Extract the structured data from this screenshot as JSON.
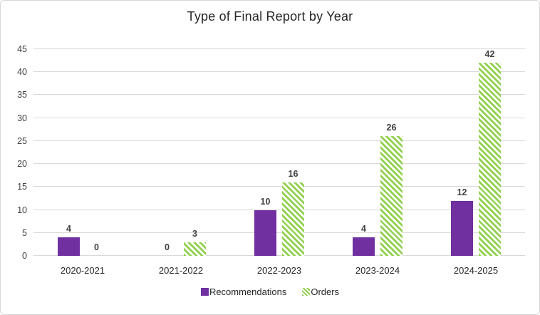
{
  "chart_data": {
    "type": "bar",
    "title": "Type of Final Report by Year",
    "categories": [
      "2020-2021",
      "2021-2022",
      "2022-2023",
      "2023-2024",
      "2024-2025"
    ],
    "series": [
      {
        "name": "Recommendations",
        "values": [
          4,
          0,
          10,
          4,
          12
        ],
        "color": "#7030A0",
        "pattern": "solid"
      },
      {
        "name": "Orders",
        "values": [
          0,
          3,
          16,
          26,
          42
        ],
        "color": "#92D050",
        "pattern": "diagonal-stripes"
      }
    ],
    "data_labels": [
      {
        "series": "Recommendations",
        "labels": [
          "4",
          "0",
          "10",
          "4",
          "12"
        ]
      },
      {
        "series": "Orders",
        "labels": [
          "0",
          "3",
          "16",
          "26",
          "42"
        ]
      }
    ],
    "xlabel": "",
    "ylabel": "",
    "ylim": [
      0,
      45
    ],
    "ytick_step": 5,
    "ytick_labels": [
      "0",
      "5",
      "10",
      "15",
      "20",
      "25",
      "30",
      "35",
      "40",
      "45"
    ],
    "grid": true,
    "legend_position": "bottom",
    "colors": {
      "data_label": "#404040",
      "axis_label": "#404040",
      "category_label": "#262626",
      "gridline": "#D9D9D9",
      "title": "#262626",
      "frame_border": "#D6D6D6",
      "background": "#FFFFFF"
    }
  }
}
